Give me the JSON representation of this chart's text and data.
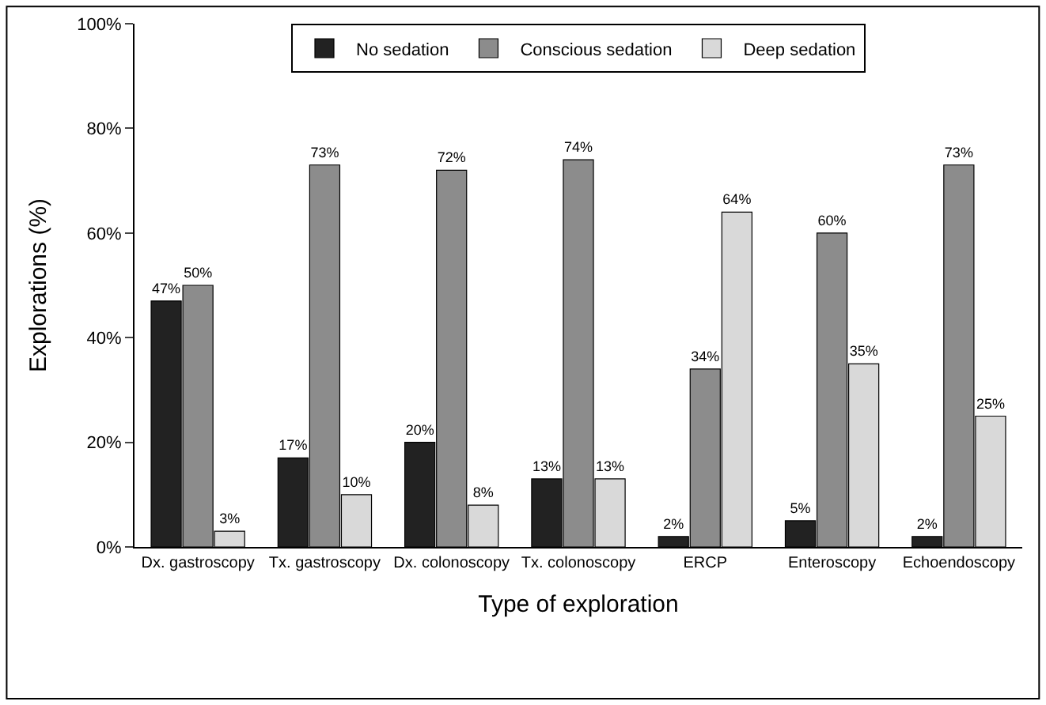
{
  "chart_data": {
    "type": "bar",
    "xlabel": "Type of exploration",
    "ylabel": "Explorations (%)",
    "categories": [
      "Dx. gastroscopy",
      "Tx. gastroscopy",
      "Dx. colonoscopy",
      "Tx. colonoscopy",
      "ERCP",
      "Enteroscopy",
      "Echoendoscopy"
    ],
    "series": [
      {
        "name": "No sedation",
        "color": "#222222",
        "values": [
          47,
          17,
          20,
          13,
          2,
          5,
          2
        ],
        "value_labels": [
          "47%",
          "17%",
          "20%",
          "13%",
          "2%",
          "5%",
          "2%"
        ]
      },
      {
        "name": "Conscious sedation",
        "color": "#8c8c8c",
        "values": [
          50,
          73,
          72,
          74,
          34,
          60,
          73
        ],
        "value_labels": [
          "50%",
          "73%",
          "72%",
          "74%",
          "34%",
          "60%",
          "73%"
        ]
      },
      {
        "name": "Deep sedation",
        "color": "#d9d9d9",
        "values": [
          3,
          10,
          8,
          13,
          64,
          35,
          25
        ],
        "value_labels": [
          "3%",
          "10%",
          "8%",
          "13%",
          "64%",
          "35%",
          "25%"
        ]
      }
    ],
    "ylim": [
      0,
      100
    ],
    "yticks": [
      {
        "value": 0,
        "label": "0%"
      },
      {
        "value": 20,
        "label": "20%"
      },
      {
        "value": 40,
        "label": "40%"
      },
      {
        "value": 60,
        "label": "60%"
      },
      {
        "value": 80,
        "label": "80%"
      },
      {
        "value": 100,
        "label": "100%"
      }
    ],
    "legend": "top"
  }
}
